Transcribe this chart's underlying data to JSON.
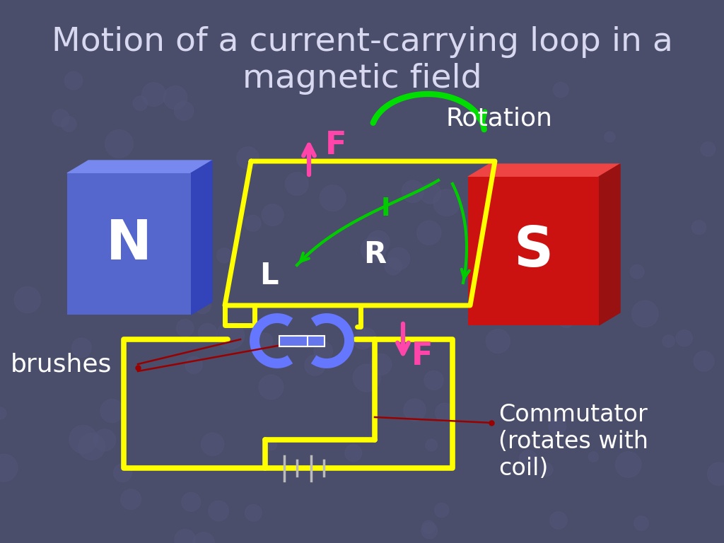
{
  "title": "Motion of a current-carrying loop in a\nmagnetic field",
  "title_color": "#d8d8f0",
  "title_fontsize": 34,
  "bg_color": "#4a4e6a",
  "N_label": "N",
  "S_label": "S",
  "loop_color": "#ffff00",
  "loop_lw": 5,
  "current_color": "#00cc00",
  "force_color": "#ff44aa",
  "rotation_color": "#00dd00",
  "commutator_color": "#6677ff",
  "brush_line_color": "#990000",
  "circuit_color": "#ffff00",
  "battery_color": "#bbbbbb",
  "white": "#ffffff",
  "label_L": "L",
  "label_R": "R",
  "label_I": "I",
  "label_F": "F",
  "label_brushes": "brushes",
  "label_rotation": "Rotation",
  "label_commutator": "Commutator\n(rotates with\ncoil)"
}
